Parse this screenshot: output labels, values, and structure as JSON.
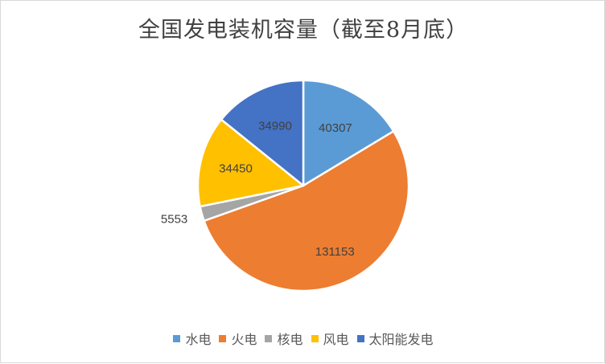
{
  "chart_data": {
    "type": "pie",
    "title": "全国发电装机容量（截至8月底）",
    "categories": [
      "水电",
      "火电",
      "核电",
      "风电",
      "太阳能发电"
    ],
    "values": [
      40307,
      131153,
      5553,
      34450,
      34990
    ],
    "colors": [
      "#5B9BD5",
      "#ED7D31",
      "#A5A5A5",
      "#FFC000",
      "#4472C4"
    ],
    "start_angle": "12 o'clock",
    "direction": "clockwise",
    "data_labels": "value",
    "legend_position": "bottom"
  }
}
